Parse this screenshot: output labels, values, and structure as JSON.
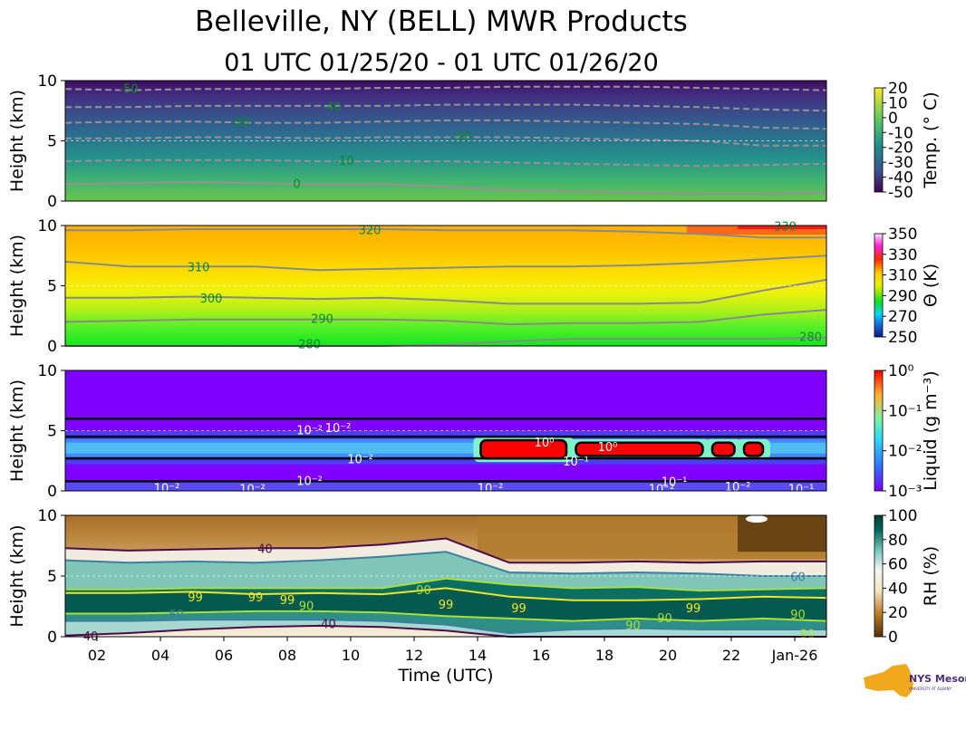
{
  "title": "Belleville, NY (BELL) MWR Products",
  "subtitle": "01 UTC 01/25/20 - 01 UTC 01/26/20",
  "logo": {
    "text": "NYS Mesonet",
    "subtext": "UNIVERSITY AT ALBANY",
    "color": "#f2a81d"
  },
  "chart_data": [
    {
      "type": "heatmap",
      "variable": "temperature",
      "ylabel": "Height (km)",
      "ylim": [
        0,
        10
      ],
      "yticks": [
        "0",
        "5",
        "10"
      ],
      "colorbar": {
        "label": "Temp. (° C)",
        "ticks": [
          "20",
          "10",
          "0",
          "-10",
          "-20",
          "-30",
          "-40",
          "-50"
        ],
        "range": [
          -50,
          20
        ]
      },
      "contour_labels": [
        {
          "text": "-50",
          "x": 3.0,
          "y": 9.3
        },
        {
          "text": "-40",
          "x": 9.4,
          "y": 7.8
        },
        {
          "text": "-30",
          "x": 6.5,
          "y": 6.5
        },
        {
          "text": "-20",
          "x": 13.5,
          "y": 5.3
        },
        {
          "text": "-10",
          "x": 9.8,
          "y": 3.3
        },
        {
          "text": "0",
          "x": 8.3,
          "y": 1.4
        }
      ],
      "contour_levels": [
        {
          "value": 0,
          "heights": [
            1.4,
            1.5,
            1.6,
            1.5,
            1.4,
            1.4,
            1.2,
            0.9,
            0.8,
            0.7,
            0.6,
            0.6,
            0.7
          ]
        },
        {
          "value": -10,
          "heights": [
            3.3,
            3.4,
            3.4,
            3.4,
            3.3,
            3.3,
            3.3,
            3.2,
            3.1,
            3.0,
            2.9,
            3.0,
            3.1
          ]
        },
        {
          "value": -20,
          "heights": [
            5.2,
            5.2,
            5.3,
            5.3,
            5.2,
            5.3,
            5.3,
            5.3,
            5.2,
            5.1,
            5.0,
            4.6,
            4.6
          ]
        },
        {
          "value": -30,
          "heights": [
            6.5,
            6.6,
            6.6,
            6.5,
            6.5,
            6.6,
            6.7,
            6.7,
            6.6,
            6.5,
            6.4,
            6.1,
            6.0
          ]
        },
        {
          "value": -40,
          "heights": [
            7.8,
            7.8,
            7.9,
            7.9,
            7.9,
            7.9,
            8.0,
            8.0,
            8.0,
            7.9,
            7.8,
            7.6,
            7.5
          ]
        },
        {
          "value": -50,
          "heights": [
            9.3,
            9.2,
            9.3,
            9.3,
            9.3,
            9.4,
            9.4,
            9.5,
            9.5,
            9.5,
            9.4,
            9.3,
            9.2
          ]
        }
      ]
    },
    {
      "type": "heatmap",
      "variable": "potential_temperature",
      "ylabel": "Height (km)",
      "ylim": [
        0,
        10
      ],
      "yticks": [
        "0",
        "5",
        "10"
      ],
      "colorbar": {
        "label": "Θ (K)",
        "ticks": [
          "350",
          "330",
          "310",
          "290",
          "270",
          "250"
        ],
        "range": [
          250,
          360
        ]
      },
      "contour_labels": [
        {
          "text": "320",
          "x": 10.6,
          "y": 9.6
        },
        {
          "text": "330",
          "x": 23.7,
          "y": 9.9
        },
        {
          "text": "310",
          "x": 5.2,
          "y": 6.5
        },
        {
          "text": "300",
          "x": 5.6,
          "y": 3.9
        },
        {
          "text": "290",
          "x": 9.1,
          "y": 2.2
        },
        {
          "text": "280",
          "x": 8.7,
          "y": 0.1
        },
        {
          "text": "280",
          "x": 24.5,
          "y": 0.7
        }
      ],
      "contour_levels": [
        {
          "value": 280,
          "heights": [
            0.0,
            0.0,
            0.0,
            0.0,
            0.0,
            0.0,
            0.1,
            0.4,
            0.6,
            0.6,
            0.6,
            0.6,
            0.7
          ]
        },
        {
          "value": 290,
          "heights": [
            2.0,
            2.1,
            2.2,
            2.2,
            2.2,
            2.2,
            2.1,
            1.8,
            1.9,
            1.9,
            2.0,
            2.6,
            3.0
          ]
        },
        {
          "value": 300,
          "heights": [
            4.0,
            4.0,
            4.1,
            4.0,
            3.9,
            4.0,
            3.8,
            3.5,
            3.5,
            3.5,
            3.6,
            4.6,
            5.5
          ]
        },
        {
          "value": 310,
          "heights": [
            7.0,
            6.6,
            6.6,
            6.6,
            6.3,
            6.4,
            6.5,
            6.6,
            6.6,
            6.7,
            6.9,
            7.2,
            7.5
          ]
        },
        {
          "value": 320,
          "heights": [
            9.6,
            9.6,
            9.7,
            9.7,
            9.7,
            9.7,
            9.6,
            9.6,
            9.6,
            9.5,
            9.3,
            9.0,
            9.0
          ]
        }
      ]
    },
    {
      "type": "heatmap",
      "variable": "liquid_water",
      "ylabel": "Height (km)",
      "ylim": [
        0,
        10
      ],
      "yticks": [
        "0",
        "5",
        "10"
      ],
      "colorbar": {
        "label": "Liquid (g m⁻³)",
        "ticks": [
          "10⁰",
          "10⁻¹",
          "10⁻²",
          "10⁻³"
        ],
        "scale": "log",
        "range": [
          0.001,
          1
        ]
      },
      "contour_labels": [
        {
          "text": "10⁻²",
          "x": 9.6,
          "y": 5.2
        },
        {
          "text": "10⁻²",
          "x": 8.7,
          "y": 5.0
        },
        {
          "text": "10⁻²",
          "x": 10.3,
          "y": 2.6
        },
        {
          "text": "10⁻²",
          "x": 8.7,
          "y": 0.8
        },
        {
          "text": "10⁻²",
          "x": 4.2,
          "y": 0.2
        },
        {
          "text": "10⁻²",
          "x": 6.9,
          "y": 0.1
        },
        {
          "text": "10⁰",
          "x": 16.1,
          "y": 4.0
        },
        {
          "text": "10⁰",
          "x": 18.1,
          "y": 3.6
        },
        {
          "text": "10⁻¹",
          "x": 17.1,
          "y": 2.4
        },
        {
          "text": "10⁻¹",
          "x": 20.2,
          "y": 0.7
        },
        {
          "text": "10⁻²",
          "x": 14.4,
          "y": 0.2
        },
        {
          "text": "10⁻²",
          "x": 19.8,
          "y": 0.1
        },
        {
          "text": "10⁻²",
          "x": 22.2,
          "y": 0.3
        },
        {
          "text": "10⁻¹",
          "x": 24.2,
          "y": 0.1
        }
      ],
      "cloud_layer": {
        "base_km": 2.8,
        "top_km": 4.3,
        "start_utc": 1.0,
        "end_utc": 25.0
      },
      "core_segments": [
        {
          "start": 14.1,
          "end": 16.8,
          "base": 2.7,
          "top": 4.2
        },
        {
          "start": 17.1,
          "end": 21.1,
          "base": 2.9,
          "top": 4.0
        },
        {
          "start": 21.4,
          "end": 22.1,
          "base": 2.9,
          "top": 4.0
        },
        {
          "start": 22.4,
          "end": 23.0,
          "base": 2.9,
          "top": 4.0
        }
      ]
    },
    {
      "type": "heatmap",
      "variable": "relative_humidity",
      "ylabel": "Height (km)",
      "xlabel": "Time (UTC)",
      "ylim": [
        0,
        10
      ],
      "yticks": [
        "0",
        "5",
        "10"
      ],
      "xticks": [
        "02",
        "04",
        "06",
        "08",
        "10",
        "12",
        "14",
        "16",
        "18",
        "20",
        "22",
        "Jan-26"
      ],
      "xtick_values": [
        2,
        4,
        6,
        8,
        10,
        12,
        14,
        16,
        18,
        20,
        22,
        24
      ],
      "xlim": [
        1,
        25
      ],
      "colorbar": {
        "label": "RH (%)",
        "ticks": [
          "100",
          "80",
          "60",
          "40",
          "20",
          "0"
        ],
        "range": [
          0,
          105
        ]
      },
      "contour_labels": [
        {
          "text": "40",
          "x": 7.3,
          "y": 7.2
        },
        {
          "text": "60",
          "x": 24.1,
          "y": 4.9
        },
        {
          "text": "90",
          "x": 12.3,
          "y": 3.8
        },
        {
          "text": "99",
          "x": 5.1,
          "y": 3.2
        },
        {
          "text": "99",
          "x": 7.0,
          "y": 3.2
        },
        {
          "text": "99",
          "x": 8.0,
          "y": 3.0
        },
        {
          "text": "90",
          "x": 8.6,
          "y": 2.5
        },
        {
          "text": "99",
          "x": 13.0,
          "y": 2.6
        },
        {
          "text": "99",
          "x": 15.3,
          "y": 2.3
        },
        {
          "text": "99",
          "x": 20.8,
          "y": 2.3
        },
        {
          "text": "90",
          "x": 24.1,
          "y": 1.8
        },
        {
          "text": "90",
          "x": 19.9,
          "y": 1.5
        },
        {
          "text": "90",
          "x": 18.9,
          "y": 0.9
        },
        {
          "text": "60",
          "x": 4.5,
          "y": 1.8
        },
        {
          "text": "40",
          "x": 9.3,
          "y": 1.0
        },
        {
          "text": "40",
          "x": 1.8,
          "y": 0.0
        },
        {
          "text": "90",
          "x": 24.4,
          "y": 0.2
        }
      ],
      "contour_levels": [
        {
          "value": 40,
          "heights": [
            7.3,
            7.1,
            7.2,
            7.3,
            7.3,
            7.6,
            8.1,
            6.1,
            6.1,
            6.2,
            6.1,
            6.2,
            6.2
          ]
        },
        {
          "value": 60,
          "heights": [
            6.3,
            6.1,
            6.2,
            6.1,
            6.3,
            6.6,
            7.0,
            5.3,
            5.2,
            5.3,
            5.2,
            5.0,
            5.0
          ]
        },
        {
          "value": 90,
          "heights": [
            3.9,
            3.9,
            4.0,
            4.0,
            4.0,
            4.0,
            4.8,
            4.3,
            4.0,
            4.1,
            3.8,
            3.9,
            4.0
          ]
        },
        {
          "value": 99,
          "heights": [
            3.6,
            3.6,
            3.7,
            3.5,
            3.6,
            3.5,
            4.0,
            3.3,
            3.0,
            3.0,
            3.1,
            3.3,
            3.2
          ]
        }
      ],
      "lower_levels": [
        {
          "value": 90,
          "heights": [
            1.9,
            1.9,
            2.0,
            2.1,
            2.1,
            2.0,
            1.7,
            1.5,
            1.3,
            1.5,
            1.3,
            1.5,
            1.3
          ]
        },
        {
          "value": 60,
          "heights": [
            1.3,
            1.3,
            1.4,
            1.4,
            1.4,
            1.3,
            1.0,
            0.3,
            0.6,
            0.7,
            0.6,
            0.6,
            0.6
          ]
        },
        {
          "value": 40,
          "heights": [
            0.1,
            0.3,
            0.6,
            0.8,
            0.9,
            0.8,
            0.5,
            0.0,
            0.0,
            0.0,
            0.0,
            0.0,
            0.0
          ]
        }
      ]
    }
  ]
}
